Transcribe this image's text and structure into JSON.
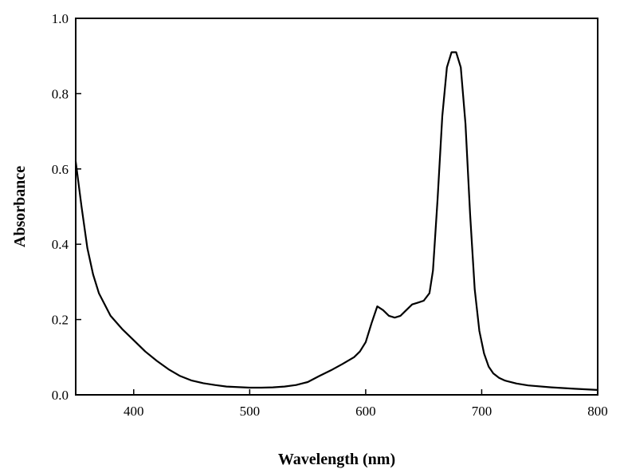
{
  "chart_data": {
    "type": "line",
    "title": "",
    "xlabel": "Wavelength (nm)",
    "ylabel": "Absorbance",
    "xlim": [
      350,
      800
    ],
    "ylim": [
      0.0,
      1.0
    ],
    "grid": false,
    "x_ticks": [
      400,
      500,
      600,
      700,
      800
    ],
    "x_tick_labels": [
      "400",
      "500",
      "600",
      "700",
      "800"
    ],
    "y_ticks": [
      0.0,
      0.2,
      0.4,
      0.6,
      0.8,
      1.0
    ],
    "y_tick_labels": [
      "0.0",
      "0.2",
      "0.4",
      "0.6",
      "0.8",
      "1.0"
    ],
    "series": [
      {
        "color": "#000000",
        "x": [
          350,
          355,
          360,
          365,
          370,
          380,
          390,
          400,
          410,
          420,
          430,
          440,
          450,
          460,
          470,
          480,
          500,
          510,
          520,
          530,
          540,
          550,
          560,
          570,
          580,
          590,
          595,
          600,
          605,
          610,
          615,
          620,
          625,
          630,
          635,
          640,
          645,
          650,
          655,
          658,
          662,
          666,
          670,
          674,
          678,
          682,
          686,
          690,
          694,
          698,
          702,
          706,
          710,
          715,
          720,
          730,
          740,
          760,
          780,
          800
        ],
        "y": [
          0.62,
          0.5,
          0.39,
          0.32,
          0.27,
          0.21,
          0.175,
          0.145,
          0.115,
          0.09,
          0.068,
          0.05,
          0.038,
          0.031,
          0.026,
          0.022,
          0.019,
          0.019,
          0.02,
          0.022,
          0.026,
          0.034,
          0.05,
          0.065,
          0.082,
          0.1,
          0.115,
          0.14,
          0.19,
          0.235,
          0.225,
          0.21,
          0.205,
          0.21,
          0.225,
          0.24,
          0.245,
          0.25,
          0.27,
          0.33,
          0.52,
          0.74,
          0.87,
          0.91,
          0.91,
          0.87,
          0.72,
          0.48,
          0.28,
          0.17,
          0.11,
          0.075,
          0.057,
          0.045,
          0.038,
          0.03,
          0.025,
          0.02,
          0.016,
          0.013
        ]
      }
    ]
  }
}
